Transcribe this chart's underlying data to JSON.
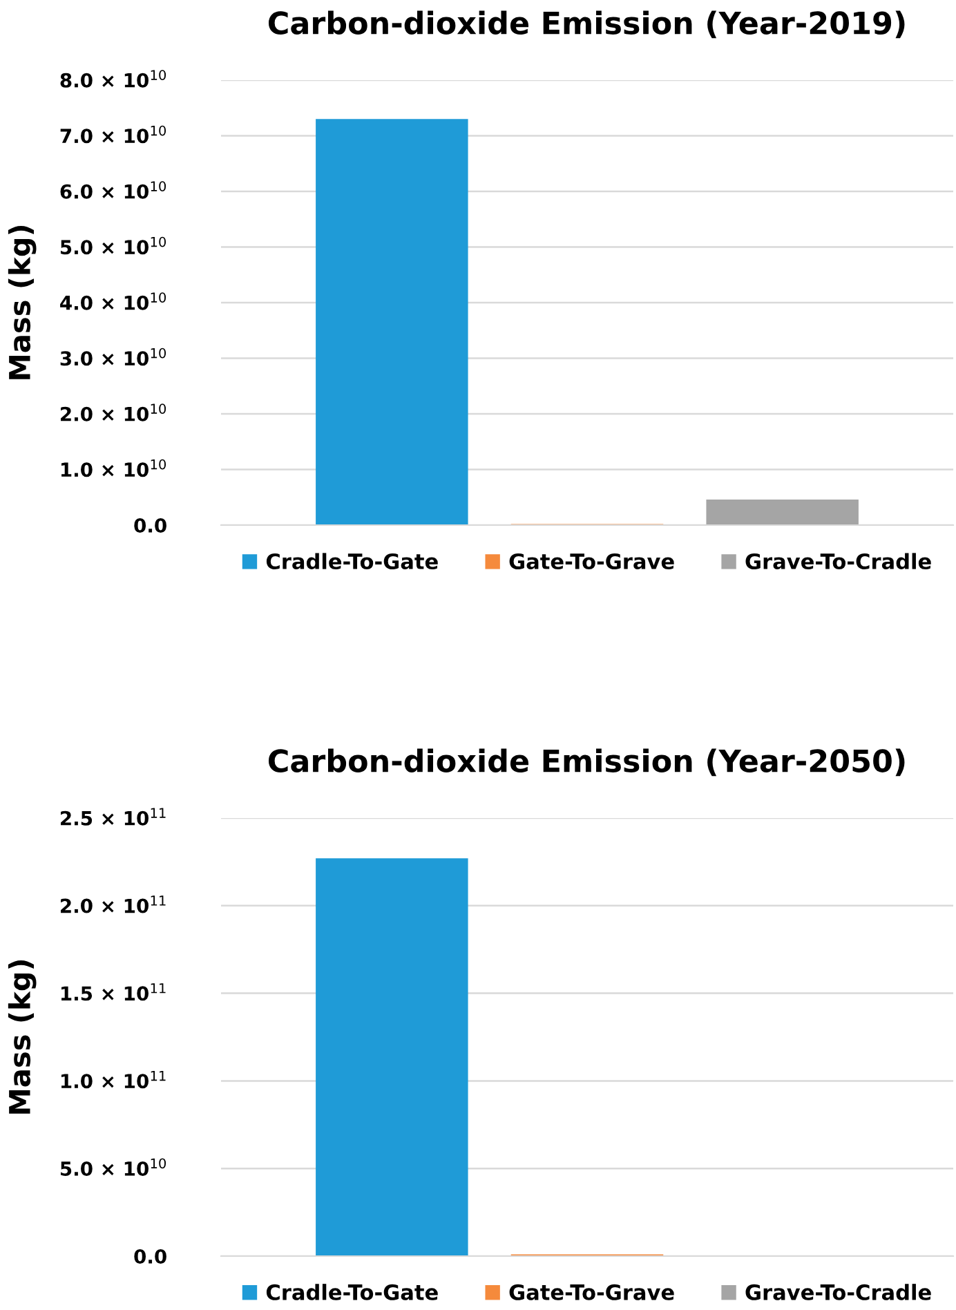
{
  "chart_data": [
    {
      "type": "bar",
      "title": "Carbon-dioxide Emission (Year-2019)",
      "ylabel": "Mass (kg)",
      "categories": [
        null
      ],
      "series": [
        {
          "name": "Cradle-To-Gate",
          "color": "#1f9bd7",
          "values": [
            73000000000.0
          ]
        },
        {
          "name": "Gate-To-Grave",
          "color": "#f58a3c",
          "values": [
            200000000.0
          ]
        },
        {
          "name": "Grave-To-Cradle",
          "color": "#a5a5a5",
          "values": [
            4600000000.0
          ]
        }
      ],
      "ylim": [
        0,
        80000000000.0
      ],
      "yticks": [
        {
          "value": 0,
          "label": "0.0"
        },
        {
          "value": 10000000000.0,
          "label": "1.0 × 10$^{10}$"
        },
        {
          "value": 20000000000.0,
          "label": "2.0 × 10$^{10}$"
        },
        {
          "value": 30000000000.0,
          "label": "3.0 × 10$^{10}$"
        },
        {
          "value": 40000000000.0,
          "label": "4.0 × 10$^{10}$"
        },
        {
          "value": 50000000000.0,
          "label": "5.0 × 10$^{10}$"
        },
        {
          "value": 60000000000.0,
          "label": "6.0 × 10$^{10}$"
        },
        {
          "value": 70000000000.0,
          "label": "7.0 × 10$^{10}$"
        },
        {
          "value": 80000000000.0,
          "label": "8.0 × 10$^{10}$"
        }
      ],
      "grid": "y",
      "legend": "bottom"
    },
    {
      "type": "bar",
      "title": "Carbon-dioxide Emission (Year-2050)",
      "ylabel": "Mass (kg)",
      "categories": [
        null
      ],
      "series": [
        {
          "name": "Cradle-To-Gate",
          "color": "#1f9bd7",
          "values": [
            227000000000.0
          ]
        },
        {
          "name": "Gate-To-Grave",
          "color": "#f58a3c",
          "values": [
            1000000000.0
          ]
        },
        {
          "name": "Grave-To-Cradle",
          "color": "#a5a5a5",
          "values": [
            0
          ]
        }
      ],
      "ylim": [
        0,
        250000000000.0
      ],
      "yticks": [
        {
          "value": 0,
          "label": "0.0"
        },
        {
          "value": 50000000000.0,
          "label": "5.0 × 10$^{10}$"
        },
        {
          "value": 100000000000.0,
          "label": "1.0 × 10$^{11}$"
        },
        {
          "value": 150000000000.0,
          "label": "1.5 × 10$^{11}$"
        },
        {
          "value": 200000000000.0,
          "label": "2.0 × 10$^{11}$"
        },
        {
          "value": 250000000000.0,
          "label": "2.5 × 10$^{11}$"
        }
      ],
      "grid": "y",
      "legend": "bottom"
    }
  ]
}
